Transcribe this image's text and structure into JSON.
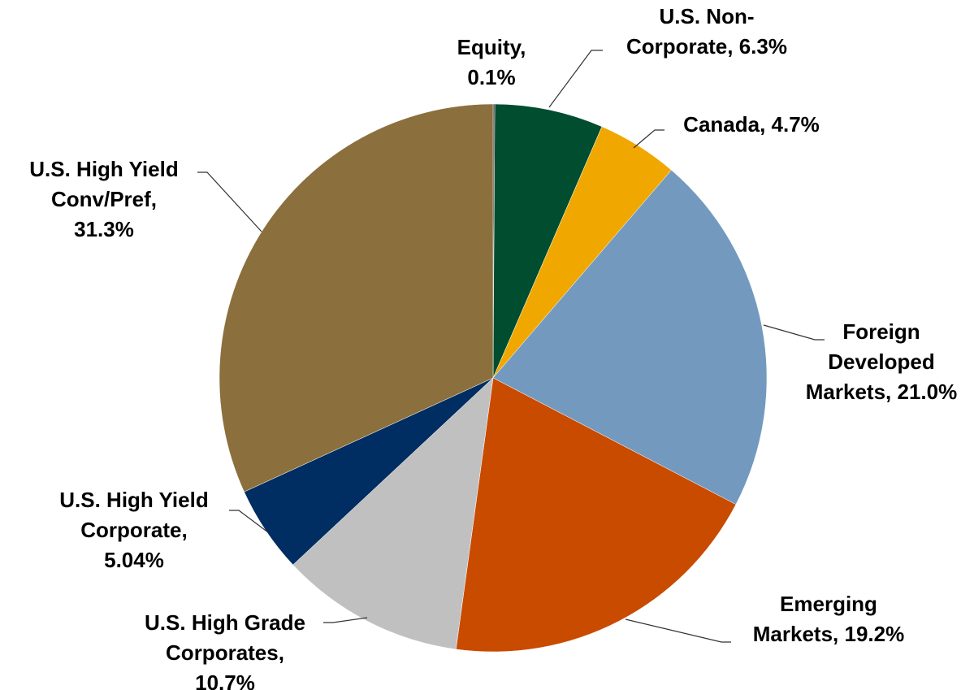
{
  "chart_data": {
    "type": "pie",
    "labels": [
      [
        "Equity,",
        "0.1%"
      ],
      [
        "U.S. Non-",
        "Corporate, 6.3%"
      ],
      [
        "Canada, 4.7%"
      ],
      [
        "Foreign",
        "Developed",
        "Markets, 21.0%"
      ],
      [
        "Emerging",
        "Markets, 19.2%"
      ],
      [
        "U.S. High Grade",
        "Corporates,",
        "10.7%"
      ],
      [
        "U.S. High Yield",
        "Corporate,",
        "5.04%"
      ],
      [
        "U.S. High Yield",
        "Conv/Pref,",
        "31.3%"
      ]
    ],
    "values": [
      0.1,
      6.3,
      4.7,
      21.0,
      19.2,
      10.7,
      5.04,
      31.3
    ],
    "colors": [
      "#404040",
      "#004d30",
      "#f0a800",
      "#7399bf",
      "#c84b00",
      "#c0c0c0",
      "#002d62",
      "#8b6f3c"
    ]
  }
}
